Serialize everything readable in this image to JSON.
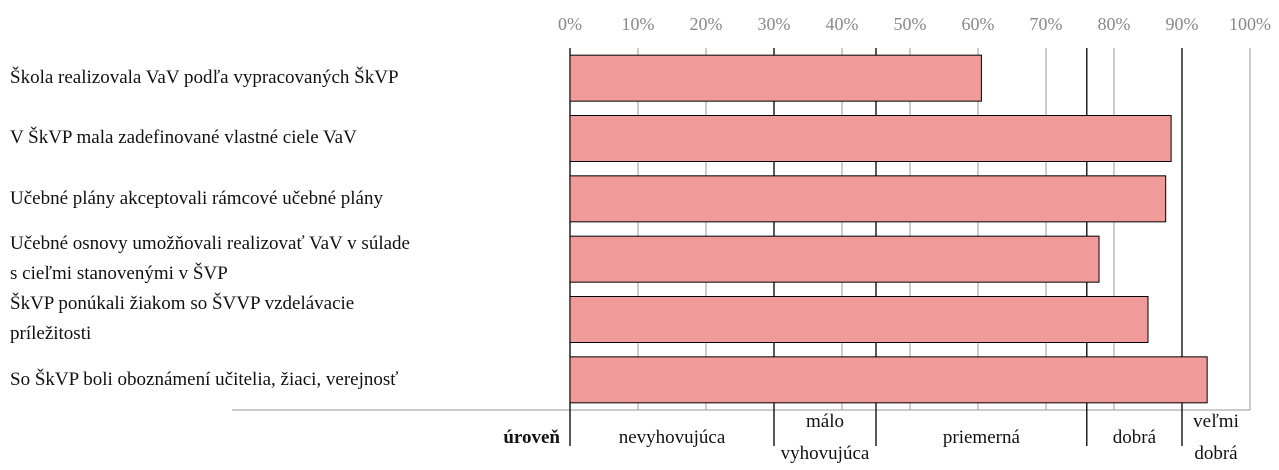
{
  "chart_data": {
    "type": "bar",
    "orientation": "horizontal",
    "categories": [
      "Škola realizovala VaV podľa vypracovaných ŠkVP",
      "V ŠkVP mala zadefinované vlastné ciele VaV",
      "Učebné plány akceptovali rámcové učebné plány",
      "Učebné osnovy umožňovali realizovať VaV v súlade\ns cieľmi stanovenými v ŠVP",
      "ŠkVP ponúkali žiakom so ŠVVP vzdelávacie\npríležitosti",
      "So ŠkVP boli oboznámení učitelia, žiaci, verejnosť"
    ],
    "values": [
      60.5,
      88.4,
      87.6,
      77.8,
      85,
      93.7
    ],
    "color": "#f09a9a",
    "xlim": [
      0,
      100
    ],
    "xticks": [
      {
        "value": 0,
        "label": "0%"
      },
      {
        "value": 10,
        "label": "10%"
      },
      {
        "value": 20,
        "label": "20%"
      },
      {
        "value": 30,
        "label": "30%"
      },
      {
        "value": 40,
        "label": "40%"
      },
      {
        "value": 50,
        "label": "50%"
      },
      {
        "value": 60,
        "label": "60%"
      },
      {
        "value": 70,
        "label": "70%"
      },
      {
        "value": 80,
        "label": "80%"
      },
      {
        "value": 90,
        "label": "90%"
      },
      {
        "value": 100,
        "label": "100%"
      }
    ],
    "grid": true,
    "levels": {
      "title": "úroveň",
      "bands": [
        {
          "label": "nevyhovujúca",
          "from": 0,
          "to": 30
        },
        {
          "label": "málo\nvyhovujúca",
          "from": 30,
          "to": 45
        },
        {
          "label": "priemerná",
          "from": 45,
          "to": 76
        },
        {
          "label": "dobrá",
          "from": 76,
          "to": 90
        },
        {
          "label": "veľmi\ndobrá",
          "from": 90,
          "to": 100
        }
      ]
    }
  }
}
